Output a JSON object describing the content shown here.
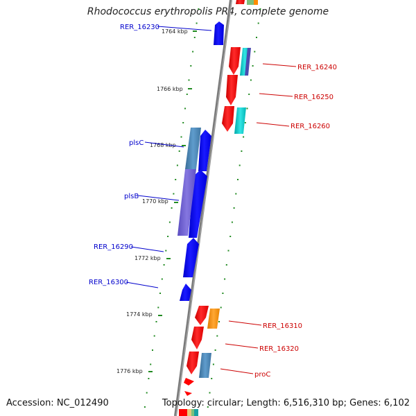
{
  "title": "Rhodococcus erythropolis PR4, complete genome",
  "footer": {
    "accession": "Accession: NC_012490",
    "topology": "Topology: circular; Length: 6,516,310 bp; Genes: 6,102"
  },
  "ticks": [
    {
      "label": "1764 kbp"
    },
    {
      "label": "1766 kbp"
    },
    {
      "label": "1768 kbp"
    },
    {
      "label": "1770 kbp"
    },
    {
      "label": "1772 kbp"
    },
    {
      "label": "1774 kbp"
    },
    {
      "label": "1776 kbp"
    }
  ],
  "genes_left": [
    {
      "name": "RER_16230",
      "color": "#0000cc"
    },
    {
      "name": "plsC",
      "color": "#0000cc"
    },
    {
      "name": "plsB",
      "color": "#0000cc"
    },
    {
      "name": "RER_16290",
      "color": "#0000cc"
    },
    {
      "name": "RER_16300",
      "color": "#0000cc"
    }
  ],
  "genes_right": [
    {
      "name": "RER_16240",
      "color": "#cc0000"
    },
    {
      "name": "RER_16250",
      "color": "#cc0000"
    },
    {
      "name": "RER_16260",
      "color": "#cc0000"
    },
    {
      "name": "RER_16310",
      "color": "#cc0000"
    },
    {
      "name": "RER_16320",
      "color": "#cc0000"
    },
    {
      "name": "proC",
      "color": "#cc0000"
    }
  ],
  "colors": {
    "forward_gene": "#ff0000",
    "reverse_gene": "#0000ff",
    "backbone": "#808080",
    "tick_dots": "#228b22",
    "cog_steelblue": "#4682b4",
    "cog_cyan": "#00cccc",
    "cog_purple": "#6a5acd",
    "cog_orange": "#ff8c00"
  }
}
